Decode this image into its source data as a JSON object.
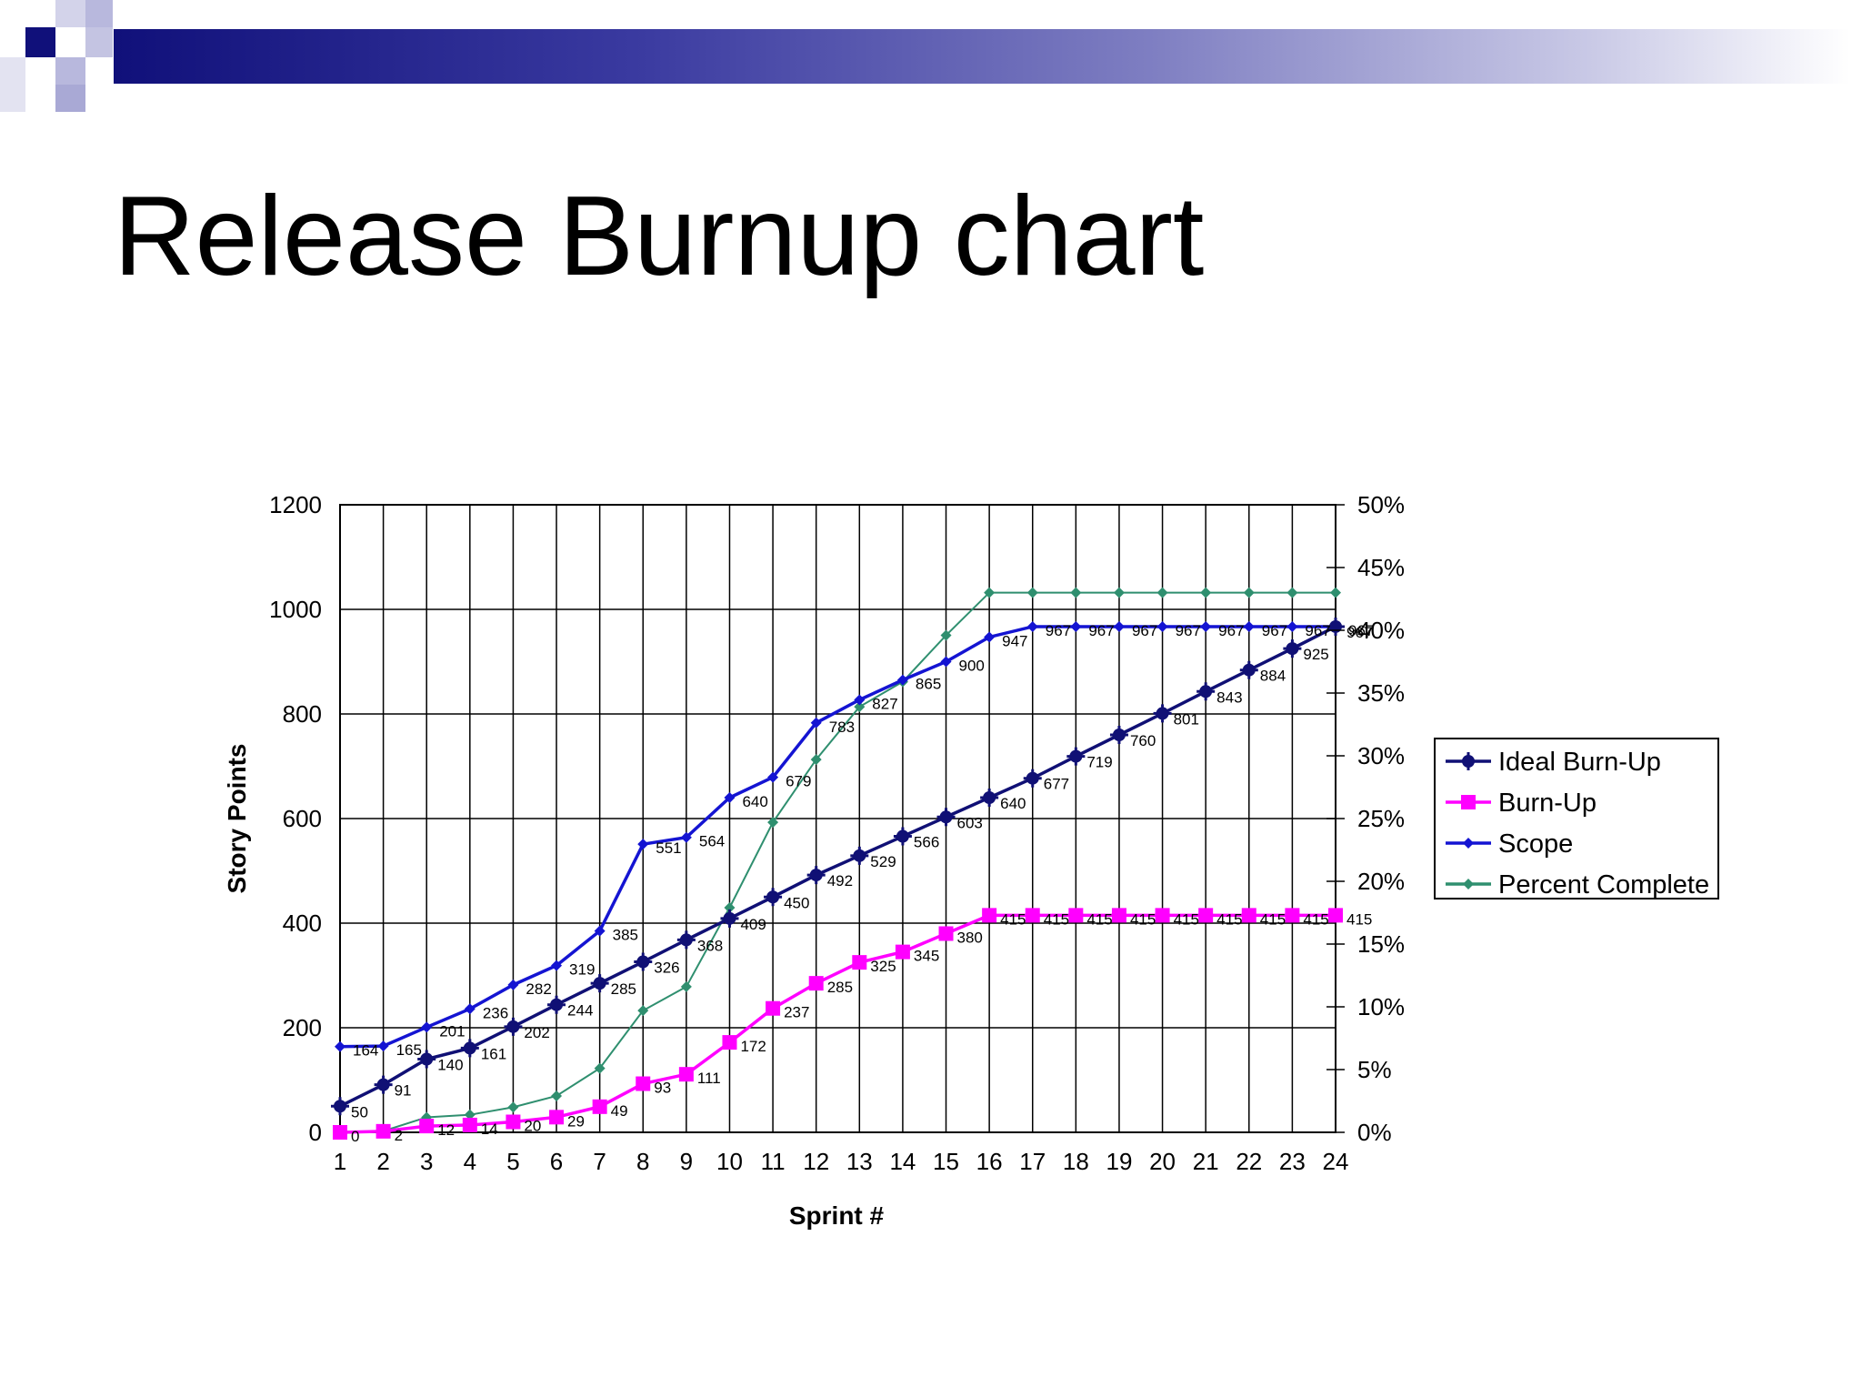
{
  "slide": {
    "title": "Release Burnup chart"
  },
  "colors": {
    "ideal": "#101075",
    "burnup": "#ff00ff",
    "scope": "#1414d2",
    "percent": "#2f8f6f",
    "banner_dark": "#10107a",
    "banner_light": "#b8b8dd"
  },
  "chart_data": {
    "type": "line",
    "xlabel": "Sprint #",
    "ylabel": "Story Points",
    "x": [
      1,
      2,
      3,
      4,
      5,
      6,
      7,
      8,
      9,
      10,
      11,
      12,
      13,
      14,
      15,
      16,
      17,
      18,
      19,
      20,
      21,
      22,
      23,
      24
    ],
    "x_tick_labels": [
      "1",
      "2",
      "3",
      "4",
      "5",
      "6",
      "7",
      "8",
      "9",
      "10",
      "11",
      "12",
      "13",
      "14",
      "15",
      "16",
      "17",
      "18",
      "19",
      "20",
      "21",
      "22",
      "23",
      "24"
    ],
    "ylim": [
      0,
      1200
    ],
    "y_ticks": [
      0,
      200,
      400,
      600,
      800,
      1000,
      1200
    ],
    "y_tick_labels": [
      "0",
      "200",
      "400",
      "600",
      "800",
      "1000",
      "1200"
    ],
    "y2lim": [
      0,
      50
    ],
    "y2_ticks": [
      0,
      5,
      10,
      15,
      20,
      25,
      30,
      35,
      40,
      45,
      50
    ],
    "y2_tick_labels": [
      "0%",
      "5%",
      "10%",
      "15%",
      "20%",
      "25%",
      "30%",
      "35%",
      "40%",
      "45%",
      "50%"
    ],
    "grid": true,
    "legend_position": "right",
    "series": [
      {
        "name": "Ideal Burn-Up",
        "axis": "left",
        "color": "#101075",
        "marker": "star",
        "values": [
          50,
          91,
          140,
          161,
          202,
          244,
          285,
          326,
          368,
          409,
          450,
          492,
          529,
          566,
          603,
          640,
          677,
          719,
          760,
          801,
          843,
          884,
          925,
          967
        ],
        "labels": [
          "50",
          "91",
          "140",
          "161",
          "202",
          "244",
          "285",
          "326",
          "368",
          "409",
          "450",
          "492",
          "529",
          "566",
          "603",
          "640",
          "677",
          "719",
          "760",
          "801",
          "843",
          "884",
          "925",
          "967"
        ]
      },
      {
        "name": "Burn-Up",
        "axis": "left",
        "color": "#ff00ff",
        "marker": "square",
        "values": [
          0,
          2,
          12,
          14,
          20,
          29,
          49,
          93,
          111,
          172,
          237,
          285,
          325,
          345,
          380,
          415,
          415,
          415,
          415,
          415,
          415,
          415,
          415,
          415
        ],
        "labels": [
          "0",
          "2",
          "12",
          "14",
          "20",
          "29",
          "49",
          "93",
          "111",
          "172",
          "237",
          "285",
          "325",
          "345",
          "380",
          "415",
          "415",
          "415",
          "415",
          "415",
          "415",
          "415",
          "415",
          "415"
        ]
      },
      {
        "name": "Scope",
        "axis": "left",
        "color": "#1414d2",
        "marker": "diamond",
        "values": [
          164,
          165,
          201,
          236,
          282,
          319,
          385,
          551,
          564,
          640,
          679,
          783,
          827,
          865,
          900,
          947,
          967,
          967,
          967,
          967,
          967,
          967,
          967,
          967
        ],
        "labels": [
          "164",
          "165",
          "201",
          "236",
          "282",
          "319",
          "385",
          "551",
          "564",
          "640",
          "679",
          "783",
          "827",
          "865",
          "900",
          "947",
          "967",
          "967",
          "967",
          "967",
          "967",
          "967",
          "967",
          "967"
        ]
      },
      {
        "name": "Percent Complete",
        "axis": "right",
        "color": "#2f8f6f",
        "marker": "diamond",
        "values": [
          0,
          0.1,
          1.2,
          1.4,
          2.0,
          2.9,
          5.1,
          9.7,
          11.6,
          17.9,
          24.7,
          29.7,
          33.9,
          35.9,
          39.6,
          43.0,
          43.0,
          43.0,
          43.0,
          43.0,
          43.0,
          43.0,
          43.0,
          43.0
        ]
      }
    ]
  }
}
